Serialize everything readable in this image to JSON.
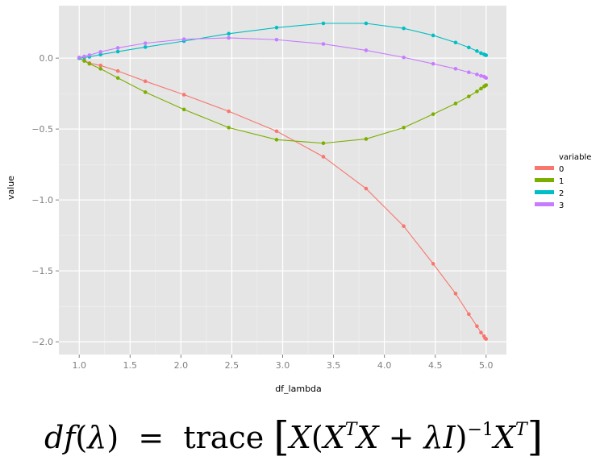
{
  "chart_data": {
    "type": "line",
    "title": "",
    "xlabel": "df_lambda",
    "ylabel": "value",
    "xlim": [
      0.8,
      5.2
    ],
    "ylim": [
      -2.09,
      0.37
    ],
    "x_ticks": [
      "1.0",
      "1.5",
      "2.0",
      "2.5",
      "3.0",
      "3.5",
      "4.0",
      "4.5",
      "5.0"
    ],
    "y_ticks": [
      "0.0",
      "−0.5",
      "−1.0",
      "−1.5",
      "−2.0"
    ],
    "grid": true,
    "legend_title": "variable",
    "legend_position": "right",
    "x": [
      1.0,
      1.05,
      1.1,
      1.21,
      1.38,
      1.65,
      2.03,
      2.47,
      2.94,
      3.4,
      3.82,
      4.19,
      4.48,
      4.7,
      4.83,
      4.91,
      4.95,
      4.98,
      4.99,
      5.0
    ],
    "series": [
      {
        "name": "0",
        "color": "#F8766D",
        "values": [
          0.0,
          -0.017,
          -0.035,
          -0.052,
          -0.091,
          -0.163,
          -0.258,
          -0.375,
          -0.515,
          -0.695,
          -0.92,
          -1.185,
          -1.45,
          -1.66,
          -1.805,
          -1.89,
          -1.935,
          -1.96,
          -1.975,
          -1.98
        ]
      },
      {
        "name": "1",
        "color": "#7CAE00",
        "values": [
          0.0,
          -0.02,
          -0.04,
          -0.075,
          -0.14,
          -0.24,
          -0.362,
          -0.49,
          -0.575,
          -0.6,
          -0.57,
          -0.49,
          -0.395,
          -0.32,
          -0.27,
          -0.235,
          -0.215,
          -0.2,
          -0.195,
          -0.19
        ]
      },
      {
        "name": "2",
        "color": "#00BFC4",
        "values": [
          0.0,
          0.004,
          0.009,
          0.025,
          0.046,
          0.078,
          0.12,
          0.172,
          0.215,
          0.245,
          0.245,
          0.21,
          0.16,
          0.11,
          0.075,
          0.05,
          0.035,
          0.027,
          0.022,
          0.02
        ]
      },
      {
        "name": "3",
        "color": "#C77CFF",
        "values": [
          0.005,
          0.012,
          0.021,
          0.044,
          0.072,
          0.105,
          0.133,
          0.143,
          0.13,
          0.1,
          0.055,
          0.005,
          -0.04,
          -0.075,
          -0.1,
          -0.115,
          -0.125,
          -0.13,
          -0.135,
          -0.14
        ]
      }
    ]
  },
  "formula": {
    "lhs": "df",
    "lambda": "λ",
    "equals": "=",
    "trace": "trace",
    "bracket_open": "[",
    "bracket_close": "]",
    "x": "X",
    "t": "T",
    "plus": "+",
    "i": "I",
    "inv": "−1",
    "lparen": "(",
    "rparen": ")"
  }
}
